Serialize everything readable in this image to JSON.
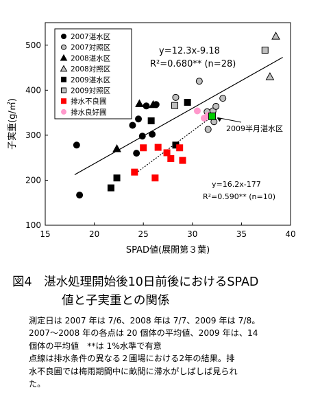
{
  "figure": {
    "title_line1": "図4　湛水処理開始後10日前後におけるSPAD",
    "title_line2": "値と子実重との関係",
    "caption": [
      "測定日は 2007 年は 7/6、2008 年は 7/7、2009 年は 7/8。",
      "2007～2008 年の各点は 20 個体の平均値、2009 年は、14",
      "個体の平均値　**は 1%水準で有意",
      "点線は排水条件の異なる２圃場における2年の結果。排",
      "水不良圃では梅雨期間中に畝間に滞水がしばしば見られ",
      "た。"
    ]
  },
  "chart_data": {
    "type": "scatter",
    "xlabel": "SPAD値(展開第３葉)",
    "ylabel": "子実重(g/㎡)",
    "xlim": [
      15,
      40
    ],
    "ylim": [
      100,
      550
    ],
    "xticks": [
      15,
      20,
      25,
      30,
      35,
      40
    ],
    "yticks": [
      100,
      200,
      300,
      400,
      500
    ],
    "grid": false,
    "legend_position": "top-left",
    "series": [
      {
        "name": "2007湛水区",
        "marker": "circle",
        "fill": "#000000",
        "stroke": "#000000",
        "points": [
          [
            18.2,
            278
          ],
          [
            18.5,
            167
          ],
          [
            23.9,
            322
          ],
          [
            24.3,
            260
          ],
          [
            24.5,
            336
          ],
          [
            24.9,
            298
          ],
          [
            25.3,
            365
          ],
          [
            25.9,
            302
          ],
          [
            26.3,
            368
          ]
        ]
      },
      {
        "name": "2007対照区",
        "marker": "circle",
        "fill": "#c0c0c0",
        "stroke": "#000000",
        "points": [
          [
            30.7,
            420
          ],
          [
            28.3,
            384
          ],
          [
            31.5,
            352
          ],
          [
            32.1,
            354
          ],
          [
            32.4,
            364
          ],
          [
            31.6,
            313
          ],
          [
            32.2,
            330
          ],
          [
            33.1,
            382
          ]
        ]
      },
      {
        "name": "2008湛水区",
        "marker": "triangle",
        "fill": "#000000",
        "stroke": "#000000",
        "points": [
          [
            22.3,
            270
          ],
          [
            24.6,
            370
          ],
          [
            26.0,
            368
          ]
        ]
      },
      {
        "name": "2008対照区",
        "marker": "triangle",
        "fill": "#c0c0c0",
        "stroke": "#000000",
        "points": [
          [
            38.5,
            520
          ],
          [
            37.9,
            430
          ]
        ]
      },
      {
        "name": "2009湛水区",
        "marker": "square",
        "fill": "#000000",
        "stroke": "#000000",
        "points": [
          [
            21.7,
            183
          ],
          [
            22.3,
            205
          ],
          [
            25.8,
            332
          ],
          [
            28.3,
            278
          ],
          [
            29.5,
            373
          ]
        ]
      },
      {
        "name": "2009対照区",
        "marker": "square",
        "fill": "#c0c0c0",
        "stroke": "#000000",
        "points": [
          [
            28.2,
            366
          ],
          [
            37.4,
            489
          ]
        ]
      },
      {
        "name": "排水不良圃",
        "marker": "square",
        "fill": "#ff0000",
        "stroke": "#ff0000",
        "points": [
          [
            24.1,
            218
          ],
          [
            25.0,
            272
          ],
          [
            26.2,
            205
          ],
          [
            26.5,
            273
          ],
          [
            27.4,
            261
          ],
          [
            27.8,
            248
          ],
          [
            28.7,
            272
          ],
          [
            29.0,
            244
          ]
        ]
      },
      {
        "name": "排水良好圃",
        "marker": "circle",
        "fill": "#ff99cc",
        "stroke": "#ff99cc",
        "points": [
          [
            30.5,
            354
          ],
          [
            31.2,
            338
          ],
          [
            31.6,
            344
          ]
        ]
      }
    ],
    "highlight": {
      "label": "2009半月湛水区",
      "x": 32.0,
      "y": 342,
      "fill": "#00cc00",
      "stroke": "#000000"
    },
    "regressions": [
      {
        "equation": "y=12.3x-9.18",
        "r2": "R²=0.680** (n=28)",
        "x_range": [
          18,
          39.2
        ],
        "slope": 12.3,
        "intercept": -9.18,
        "style": "solid"
      },
      {
        "equation": "y=16.2x-177",
        "r2": "R²=0.590** (n=10)",
        "x_range": [
          24.0,
          31.8
        ],
        "slope": 16.2,
        "intercept": -177,
        "style": "dotted"
      }
    ]
  }
}
